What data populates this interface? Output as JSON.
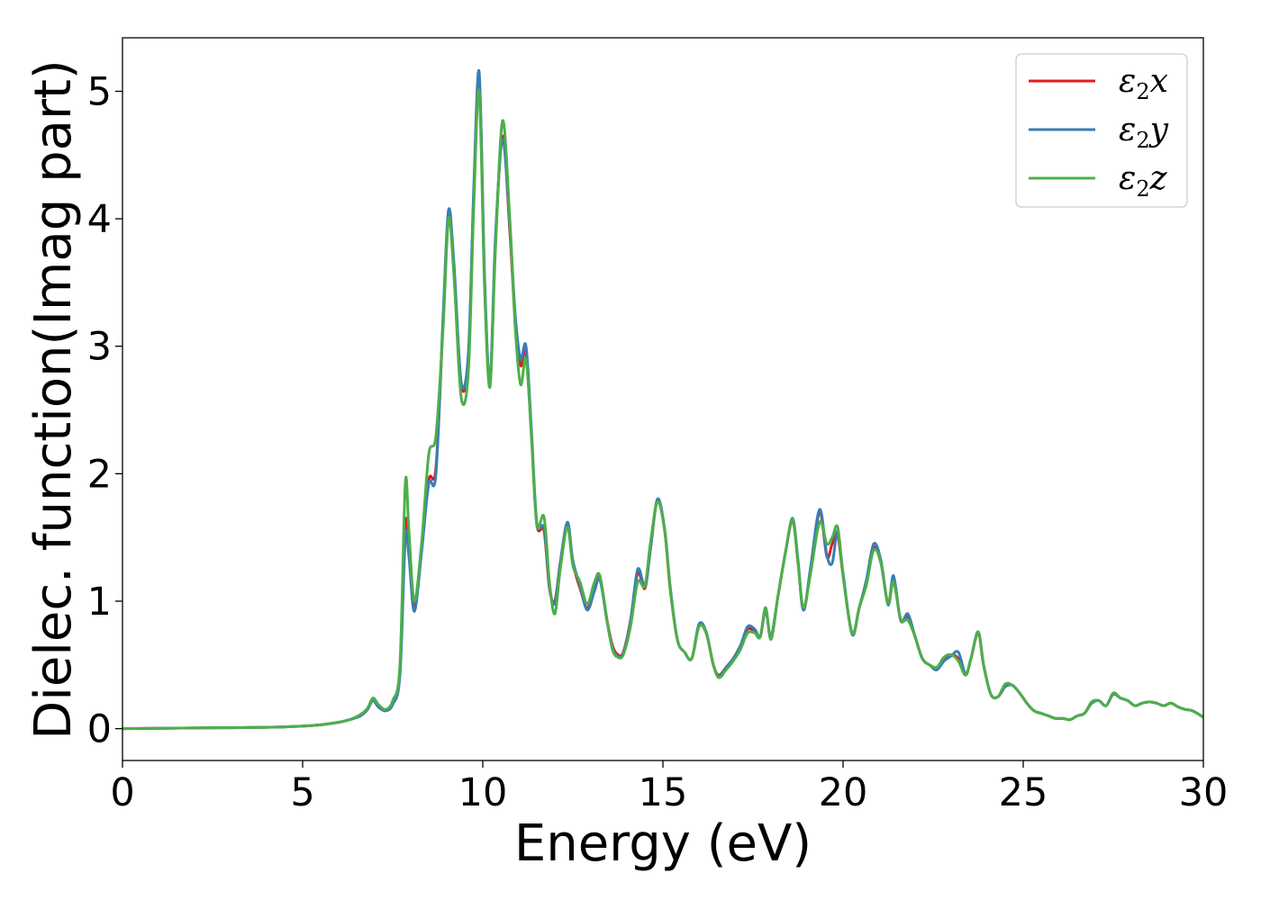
{
  "chart_data": {
    "type": "line",
    "title": "",
    "xlabel": "Energy (eV)",
    "ylabel": "Dielec. function(Imag part)",
    "xlim": [
      0,
      30
    ],
    "ylim": [
      -0.25,
      5.42
    ],
    "xticks": [
      0,
      5,
      10,
      15,
      20,
      25,
      30
    ],
    "yticks": [
      0,
      1,
      2,
      3,
      4,
      5
    ],
    "grid": false,
    "legend_position": "top-right",
    "series": [
      {
        "name": "ε2x",
        "legend_base": "ε",
        "legend_sub": "2",
        "legend_var": "x",
        "color": "#e41a1c",
        "x": [
          0,
          2,
          4,
          5,
          5.5,
          6,
          6.3,
          6.6,
          6.8,
          6.95,
          7.1,
          7.3,
          7.5,
          7.7,
          7.85,
          7.95,
          8.1,
          8.3,
          8.5,
          8.7,
          8.9,
          9.05,
          9.2,
          9.4,
          9.6,
          9.75,
          9.9,
          10.05,
          10.2,
          10.35,
          10.55,
          10.75,
          10.9,
          11.05,
          11.2,
          11.35,
          11.5,
          11.7,
          11.85,
          12.0,
          12.15,
          12.35,
          12.5,
          12.7,
          12.9,
          13.1,
          13.25,
          13.45,
          13.6,
          13.75,
          13.9,
          14.1,
          14.3,
          14.5,
          14.65,
          14.85,
          15.05,
          15.2,
          15.4,
          15.6,
          15.8,
          16.0,
          16.2,
          16.4,
          16.55,
          16.75,
          16.95,
          17.15,
          17.35,
          17.55,
          17.7,
          17.85,
          18.0,
          18.2,
          18.4,
          18.6,
          18.75,
          18.9,
          19.1,
          19.35,
          19.55,
          19.7,
          19.85,
          20.0,
          20.25,
          20.45,
          20.65,
          20.85,
          21.05,
          21.25,
          21.4,
          21.6,
          21.8,
          22.0,
          22.2,
          22.4,
          22.6,
          22.8,
          23.0,
          23.2,
          23.4,
          23.55,
          23.75,
          23.9,
          24.1,
          24.3,
          24.5,
          24.7,
          24.9,
          25.1,
          25.3,
          25.5,
          25.7,
          25.9,
          26.1,
          26.3,
          26.5,
          26.7,
          26.9,
          27.1,
          27.3,
          27.5,
          27.7,
          27.9,
          28.1,
          28.3,
          28.5,
          28.7,
          28.9,
          29.1,
          29.3,
          29.5,
          29.7,
          30.0
        ],
        "y": [
          0,
          0.005,
          0.01,
          0.02,
          0.03,
          0.05,
          0.07,
          0.1,
          0.15,
          0.23,
          0.18,
          0.14,
          0.2,
          0.45,
          1.6,
          1.4,
          0.95,
          1.4,
          1.95,
          2.05,
          3.2,
          4.05,
          3.6,
          2.7,
          2.9,
          4.2,
          5.1,
          3.5,
          2.7,
          3.8,
          4.65,
          3.9,
          3.2,
          2.85,
          2.95,
          2.3,
          1.6,
          1.55,
          1.1,
          1.0,
          1.3,
          1.6,
          1.3,
          1.1,
          0.95,
          1.1,
          1.18,
          0.85,
          0.65,
          0.58,
          0.6,
          0.85,
          1.22,
          1.1,
          1.4,
          1.8,
          1.55,
          1.1,
          0.7,
          0.6,
          0.55,
          0.8,
          0.75,
          0.5,
          0.42,
          0.48,
          0.55,
          0.65,
          0.78,
          0.76,
          0.72,
          0.93,
          0.72,
          1.05,
          1.38,
          1.63,
          1.3,
          0.93,
          1.25,
          1.7,
          1.35,
          1.45,
          1.52,
          1.2,
          0.75,
          0.95,
          1.15,
          1.42,
          1.3,
          0.98,
          1.18,
          0.85,
          0.88,
          0.72,
          0.55,
          0.5,
          0.48,
          0.55,
          0.58,
          0.55,
          0.42,
          0.55,
          0.75,
          0.5,
          0.27,
          0.25,
          0.33,
          0.34,
          0.28,
          0.2,
          0.14,
          0.12,
          0.1,
          0.08,
          0.08,
          0.07,
          0.1,
          0.12,
          0.2,
          0.22,
          0.18,
          0.27,
          0.24,
          0.22,
          0.18,
          0.2,
          0.21,
          0.2,
          0.18,
          0.2,
          0.17,
          0.15,
          0.14,
          0.09
        ]
      },
      {
        "name": "ε2y",
        "legend_base": "ε",
        "legend_sub": "2",
        "legend_var": "y",
        "color": "#377eb8",
        "x": [
          0,
          2,
          4,
          5,
          5.5,
          6,
          6.3,
          6.6,
          6.8,
          6.95,
          7.1,
          7.3,
          7.5,
          7.7,
          7.85,
          7.95,
          8.1,
          8.3,
          8.5,
          8.7,
          8.9,
          9.05,
          9.2,
          9.4,
          9.6,
          9.75,
          9.9,
          10.05,
          10.2,
          10.35,
          10.55,
          10.75,
          10.9,
          11.05,
          11.2,
          11.35,
          11.5,
          11.7,
          11.85,
          12.0,
          12.15,
          12.35,
          12.5,
          12.7,
          12.9,
          13.1,
          13.25,
          13.45,
          13.6,
          13.75,
          13.9,
          14.1,
          14.3,
          14.5,
          14.65,
          14.85,
          15.05,
          15.2,
          15.4,
          15.6,
          15.8,
          16.0,
          16.2,
          16.4,
          16.55,
          16.75,
          16.95,
          17.15,
          17.35,
          17.55,
          17.7,
          17.85,
          18.0,
          18.2,
          18.4,
          18.6,
          18.75,
          18.9,
          19.1,
          19.35,
          19.55,
          19.7,
          19.85,
          20.0,
          20.25,
          20.45,
          20.65,
          20.85,
          21.05,
          21.25,
          21.4,
          21.6,
          21.8,
          22.0,
          22.2,
          22.4,
          22.6,
          22.8,
          23.0,
          23.2,
          23.4,
          23.55,
          23.75,
          23.9,
          24.1,
          24.3,
          24.5,
          24.7,
          24.9,
          25.1,
          25.3,
          25.5,
          25.7,
          25.9,
          26.1,
          26.3,
          26.5,
          26.7,
          26.9,
          27.1,
          27.3,
          27.5,
          27.7,
          27.9,
          28.1,
          28.3,
          28.5,
          28.7,
          28.9,
          29.1,
          29.3,
          29.5,
          29.7,
          30.0
        ],
        "y": [
          0,
          0.005,
          0.01,
          0.02,
          0.03,
          0.05,
          0.07,
          0.1,
          0.15,
          0.22,
          0.17,
          0.14,
          0.19,
          0.42,
          1.5,
          1.35,
          0.92,
          1.38,
          1.92,
          2.0,
          3.25,
          4.07,
          3.65,
          2.72,
          2.95,
          4.25,
          5.15,
          3.55,
          2.72,
          3.85,
          4.62,
          3.95,
          3.25,
          2.9,
          3.0,
          2.35,
          1.62,
          1.57,
          1.12,
          0.98,
          1.3,
          1.62,
          1.32,
          1.12,
          0.93,
          1.08,
          1.17,
          0.84,
          0.63,
          0.57,
          0.59,
          0.84,
          1.25,
          1.12,
          1.4,
          1.8,
          1.56,
          1.12,
          0.7,
          0.6,
          0.55,
          0.82,
          0.76,
          0.5,
          0.41,
          0.48,
          0.55,
          0.65,
          0.8,
          0.78,
          0.72,
          0.93,
          0.72,
          1.05,
          1.38,
          1.65,
          1.32,
          0.93,
          1.27,
          1.72,
          1.36,
          1.3,
          1.55,
          1.22,
          0.74,
          0.95,
          1.17,
          1.45,
          1.32,
          0.97,
          1.2,
          0.85,
          0.9,
          0.72,
          0.55,
          0.5,
          0.46,
          0.53,
          0.57,
          0.6,
          0.43,
          0.55,
          0.76,
          0.5,
          0.27,
          0.25,
          0.33,
          0.34,
          0.28,
          0.2,
          0.14,
          0.12,
          0.1,
          0.08,
          0.08,
          0.07,
          0.1,
          0.12,
          0.2,
          0.22,
          0.18,
          0.27,
          0.24,
          0.22,
          0.18,
          0.2,
          0.21,
          0.2,
          0.18,
          0.2,
          0.17,
          0.15,
          0.14,
          0.09
        ]
      },
      {
        "name": "ε2z",
        "legend_base": "ε",
        "legend_sub": "2",
        "legend_var": "z",
        "color": "#4daf4a",
        "x": [
          0,
          2,
          4,
          5,
          5.5,
          6,
          6.3,
          6.6,
          6.8,
          6.95,
          7.1,
          7.3,
          7.5,
          7.7,
          7.85,
          7.95,
          8.1,
          8.3,
          8.5,
          8.7,
          8.9,
          9.05,
          9.2,
          9.4,
          9.6,
          9.75,
          9.9,
          10.05,
          10.2,
          10.35,
          10.55,
          10.75,
          10.9,
          11.05,
          11.2,
          11.35,
          11.5,
          11.7,
          11.85,
          12.0,
          12.15,
          12.35,
          12.5,
          12.7,
          12.9,
          13.1,
          13.25,
          13.45,
          13.6,
          13.75,
          13.9,
          14.1,
          14.3,
          14.5,
          14.65,
          14.85,
          15.05,
          15.2,
          15.4,
          15.6,
          15.8,
          16.0,
          16.2,
          16.4,
          16.55,
          16.75,
          16.95,
          17.15,
          17.35,
          17.55,
          17.7,
          17.85,
          18.0,
          18.2,
          18.4,
          18.6,
          18.75,
          18.9,
          19.1,
          19.35,
          19.55,
          19.7,
          19.85,
          20.0,
          20.25,
          20.45,
          20.65,
          20.85,
          21.05,
          21.25,
          21.4,
          21.6,
          21.8,
          22.0,
          22.2,
          22.4,
          22.6,
          22.8,
          23.0,
          23.2,
          23.4,
          23.55,
          23.75,
          23.9,
          24.1,
          24.3,
          24.5,
          24.7,
          24.9,
          25.1,
          25.3,
          25.5,
          25.7,
          25.9,
          26.1,
          26.3,
          26.5,
          26.7,
          26.9,
          27.1,
          27.3,
          27.5,
          27.7,
          27.9,
          28.1,
          28.3,
          28.5,
          28.7,
          28.9,
          29.1,
          29.3,
          29.5,
          29.7,
          30.0
        ],
        "y": [
          0,
          0.005,
          0.01,
          0.02,
          0.03,
          0.05,
          0.07,
          0.11,
          0.16,
          0.24,
          0.19,
          0.15,
          0.22,
          0.5,
          1.93,
          1.55,
          1.0,
          1.45,
          2.15,
          2.3,
          3.15,
          4.0,
          3.55,
          2.6,
          2.8,
          4.1,
          5.0,
          3.45,
          2.68,
          3.75,
          4.77,
          4.0,
          3.15,
          2.7,
          2.9,
          2.3,
          1.6,
          1.66,
          1.15,
          0.9,
          1.25,
          1.58,
          1.28,
          1.15,
          0.98,
          1.15,
          1.2,
          0.85,
          0.62,
          0.56,
          0.58,
          0.8,
          1.15,
          1.12,
          1.45,
          1.78,
          1.55,
          1.1,
          0.7,
          0.6,
          0.55,
          0.8,
          0.75,
          0.5,
          0.4,
          0.46,
          0.53,
          0.62,
          0.75,
          0.75,
          0.72,
          0.95,
          0.7,
          1.05,
          1.38,
          1.64,
          1.3,
          0.95,
          1.22,
          1.62,
          1.45,
          1.5,
          1.58,
          1.2,
          0.75,
          0.95,
          1.13,
          1.4,
          1.3,
          0.98,
          1.15,
          0.86,
          0.85,
          0.72,
          0.55,
          0.5,
          0.48,
          0.56,
          0.58,
          0.53,
          0.42,
          0.55,
          0.76,
          0.5,
          0.27,
          0.25,
          0.35,
          0.34,
          0.28,
          0.2,
          0.14,
          0.12,
          0.1,
          0.08,
          0.08,
          0.07,
          0.1,
          0.12,
          0.21,
          0.22,
          0.18,
          0.28,
          0.24,
          0.22,
          0.18,
          0.2,
          0.21,
          0.2,
          0.18,
          0.2,
          0.17,
          0.15,
          0.14,
          0.09
        ]
      }
    ]
  }
}
